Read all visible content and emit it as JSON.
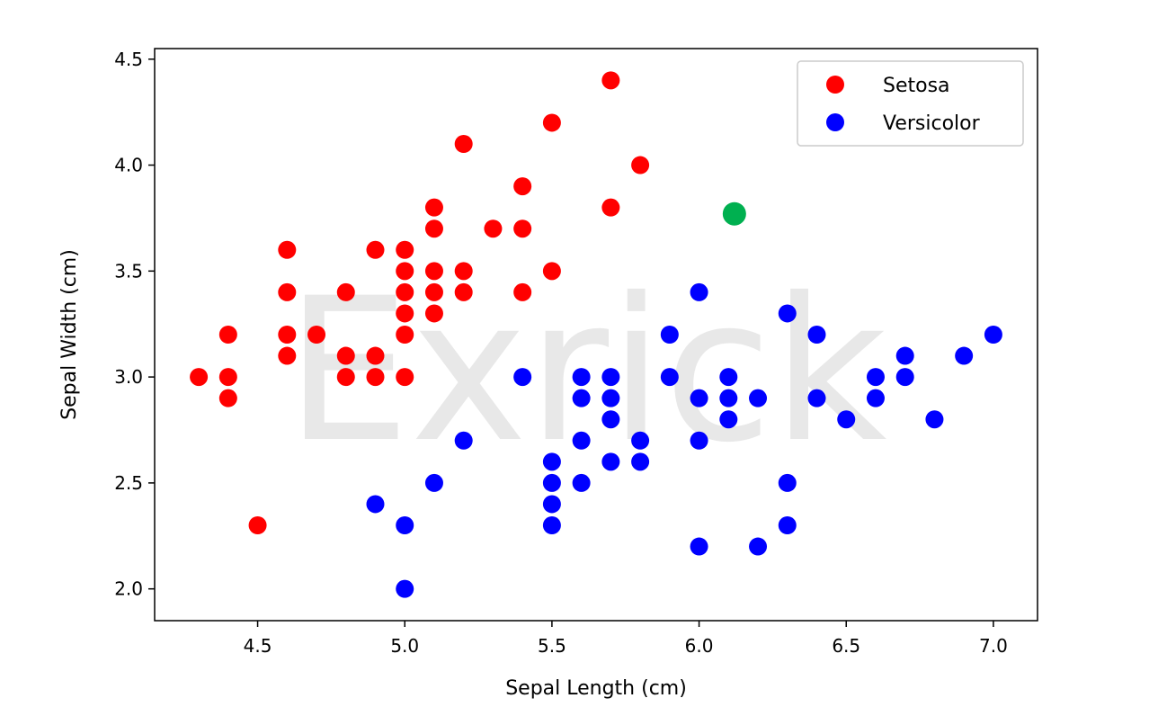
{
  "chart_data": {
    "type": "scatter",
    "title": "",
    "xlabel": "Sepal Length (cm)",
    "ylabel": "Sepal Width (cm)",
    "xlim": [
      4.15,
      7.15
    ],
    "ylim": [
      1.85,
      4.55
    ],
    "xticks": [
      4.5,
      5.0,
      5.5,
      6.0,
      6.5,
      7.0
    ],
    "xtick_labels": [
      "4.5",
      "5.0",
      "5.5",
      "6.0",
      "6.5",
      "7.0"
    ],
    "yticks": [
      2.0,
      2.5,
      3.0,
      3.5,
      4.0,
      4.5
    ],
    "ytick_labels": [
      "2.0",
      "2.5",
      "3.0",
      "3.5",
      "4.0",
      "4.5"
    ],
    "grid": false,
    "legend_position": "top-right",
    "watermark": "Exrick",
    "series": [
      {
        "name": "Setosa",
        "color": "#ff0000",
        "points": [
          [
            4.3,
            3.0
          ],
          [
            4.4,
            3.2
          ],
          [
            4.4,
            3.0
          ],
          [
            4.4,
            2.9
          ],
          [
            4.5,
            2.3
          ],
          [
            4.6,
            3.6
          ],
          [
            4.6,
            3.4
          ],
          [
            4.6,
            3.2
          ],
          [
            4.6,
            3.1
          ],
          [
            4.7,
            3.2
          ],
          [
            4.8,
            3.4
          ],
          [
            4.8,
            3.1
          ],
          [
            4.8,
            3.0
          ],
          [
            4.9,
            3.6
          ],
          [
            4.9,
            3.1
          ],
          [
            4.9,
            3.0
          ],
          [
            5.0,
            3.6
          ],
          [
            5.0,
            3.5
          ],
          [
            5.0,
            3.4
          ],
          [
            5.0,
            3.3
          ],
          [
            5.0,
            3.2
          ],
          [
            5.0,
            3.0
          ],
          [
            5.1,
            3.8
          ],
          [
            5.1,
            3.7
          ],
          [
            5.1,
            3.5
          ],
          [
            5.1,
            3.4
          ],
          [
            5.1,
            3.3
          ],
          [
            5.2,
            4.1
          ],
          [
            5.2,
            3.5
          ],
          [
            5.2,
            3.4
          ],
          [
            5.3,
            3.7
          ],
          [
            5.4,
            3.9
          ],
          [
            5.4,
            3.7
          ],
          [
            5.4,
            3.4
          ],
          [
            5.5,
            4.2
          ],
          [
            5.5,
            3.5
          ],
          [
            5.7,
            4.4
          ],
          [
            5.7,
            3.8
          ],
          [
            5.8,
            4.0
          ]
        ]
      },
      {
        "name": "Versicolor",
        "color": "#0000ff",
        "points": [
          [
            4.9,
            2.4
          ],
          [
            5.0,
            2.3
          ],
          [
            5.0,
            2.0
          ],
          [
            5.1,
            2.5
          ],
          [
            5.2,
            2.7
          ],
          [
            5.4,
            3.0
          ],
          [
            5.5,
            2.6
          ],
          [
            5.5,
            2.5
          ],
          [
            5.5,
            2.4
          ],
          [
            5.5,
            2.3
          ],
          [
            5.6,
            3.0
          ],
          [
            5.6,
            2.9
          ],
          [
            5.6,
            2.7
          ],
          [
            5.6,
            2.5
          ],
          [
            5.7,
            3.0
          ],
          [
            5.7,
            2.9
          ],
          [
            5.7,
            2.8
          ],
          [
            5.7,
            2.6
          ],
          [
            5.8,
            2.7
          ],
          [
            5.8,
            2.6
          ],
          [
            5.9,
            3.2
          ],
          [
            5.9,
            3.0
          ],
          [
            6.0,
            3.4
          ],
          [
            6.0,
            2.9
          ],
          [
            6.0,
            2.7
          ],
          [
            6.0,
            2.2
          ],
          [
            6.1,
            3.0
          ],
          [
            6.1,
            2.9
          ],
          [
            6.1,
            2.8
          ],
          [
            6.2,
            2.9
          ],
          [
            6.2,
            2.2
          ],
          [
            6.3,
            3.3
          ],
          [
            6.3,
            2.5
          ],
          [
            6.3,
            2.3
          ],
          [
            6.4,
            3.2
          ],
          [
            6.4,
            2.9
          ],
          [
            6.5,
            2.8
          ],
          [
            6.6,
            3.0
          ],
          [
            6.6,
            2.9
          ],
          [
            6.7,
            3.1
          ],
          [
            6.7,
            3.0
          ],
          [
            6.8,
            2.8
          ],
          [
            6.9,
            3.1
          ],
          [
            7.0,
            3.2
          ]
        ]
      }
    ],
    "highlight_point": {
      "x": 6.12,
      "y": 3.77,
      "color": "#00b050"
    }
  }
}
